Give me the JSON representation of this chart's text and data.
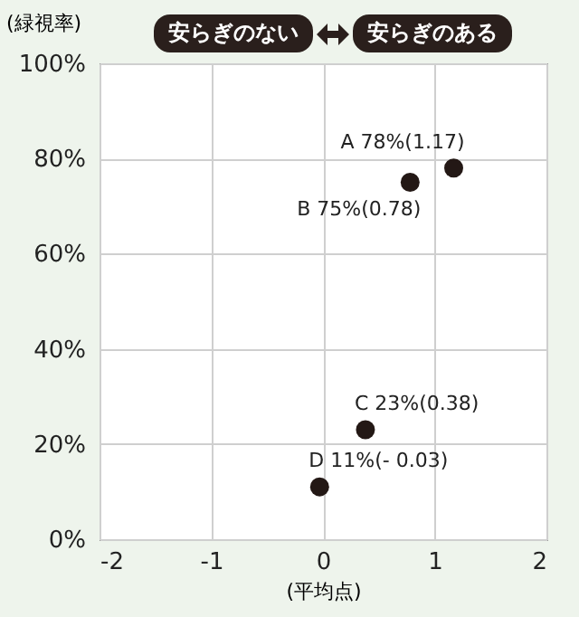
{
  "chart_data": {
    "type": "scatter",
    "ylabel": "(緑視率)",
    "xlabel": "(平均点)",
    "annotations": [
      "安らぎのない",
      "安らぎのある"
    ],
    "x": [
      1.17,
      0.78,
      0.38,
      -0.03
    ],
    "values": [
      78,
      75,
      23,
      11
    ],
    "value_labels": [
      "A 78%(1.17)",
      "B 75%(0.78)",
      "C 23%(0.38)",
      "D 11%(- 0.03)"
    ],
    "color": "#231815",
    "marker": "circle",
    "grid": true,
    "xlim": [
      -2,
      2
    ],
    "xticks": [
      -2,
      -1,
      0,
      1,
      2
    ],
    "ylim": [
      0,
      100
    ],
    "yticks": [
      {
        "value": 0,
        "label": "0%"
      },
      {
        "value": 20,
        "label": "20%"
      },
      {
        "value": 40,
        "label": "40%"
      },
      {
        "value": 60,
        "label": "60%"
      },
      {
        "value": 80,
        "label": "80%"
      },
      {
        "value": 100,
        "label": "100%"
      }
    ]
  }
}
